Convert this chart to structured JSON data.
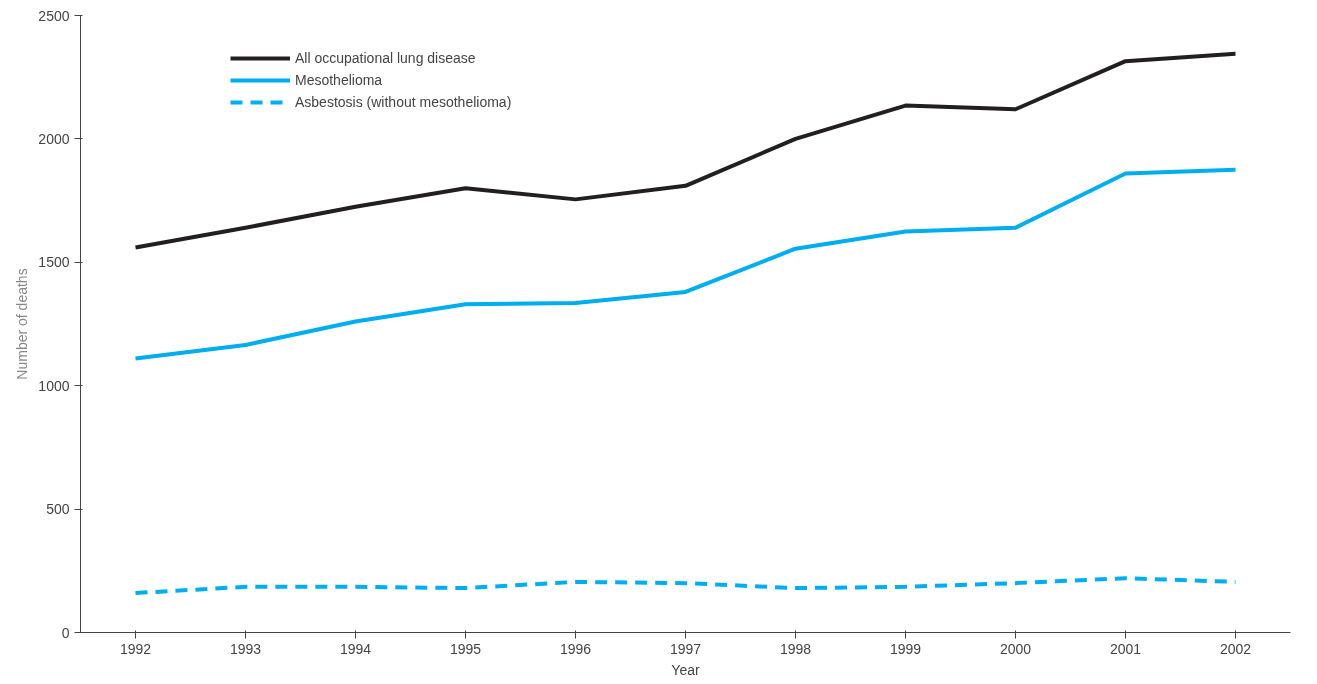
{
  "chart_data": {
    "type": "line",
    "xlabel": "Year",
    "ylabel": "Number of deaths",
    "categories": [
      "1992",
      "1993",
      "1994",
      "1995",
      "1996",
      "1997",
      "1998",
      "1999",
      "2000",
      "2001",
      "2002"
    ],
    "series": [
      {
        "name": "All occupational lung disease",
        "color": "#231f20",
        "line_style": "solid",
        "values": [
          1560,
          1640,
          1725,
          1800,
          1755,
          1810,
          2000,
          2135,
          2120,
          2315,
          2345
        ]
      },
      {
        "name": "Mesothelioma",
        "color": "#00aeef",
        "line_style": "solid",
        "values": [
          1110,
          1165,
          1260,
          1330,
          1335,
          1380,
          1555,
          1625,
          1640,
          1860,
          1875
        ]
      },
      {
        "name": "Asbestosis (without mesothelioma)",
        "color": "#00aeef",
        "line_style": "dashed",
        "values": [
          160,
          185,
          185,
          180,
          205,
          200,
          180,
          185,
          200,
          220,
          205
        ]
      }
    ],
    "ylim": [
      0,
      2500
    ],
    "yticks": [
      0,
      500,
      1000,
      1500,
      2000,
      2500
    ],
    "grid": false,
    "legend": "top left",
    "marker": "none"
  }
}
